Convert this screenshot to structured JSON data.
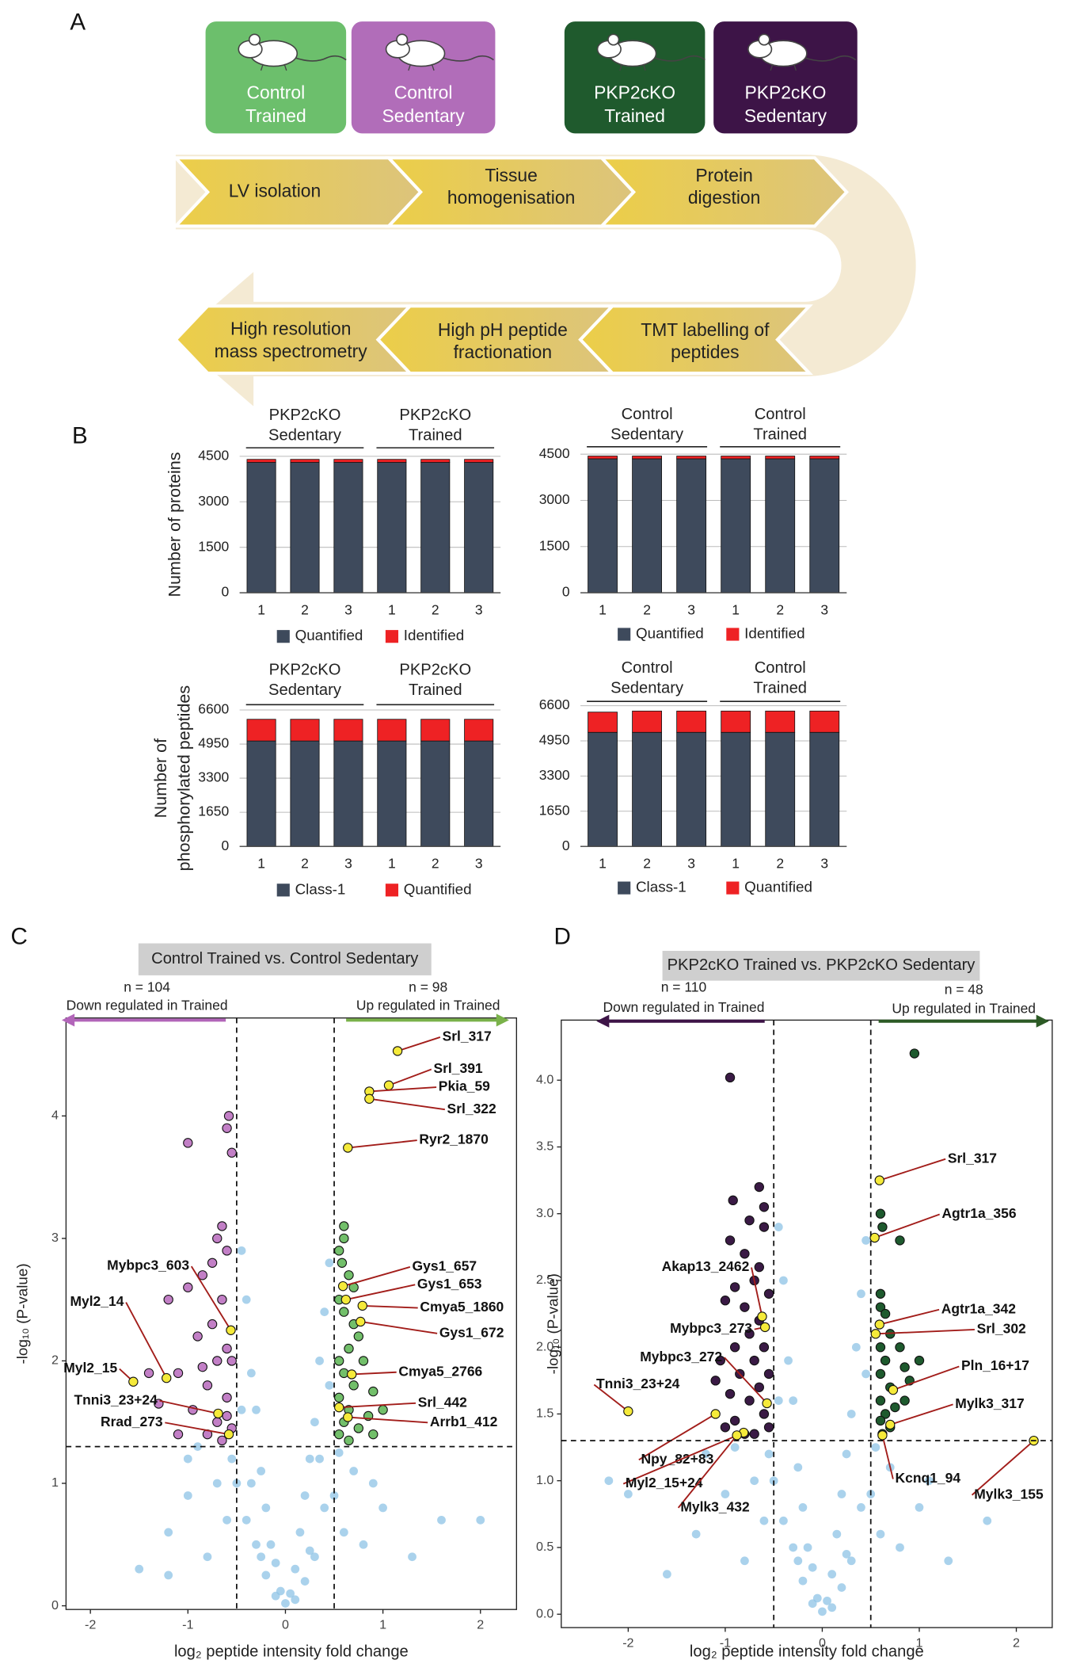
{
  "panel_labels": [
    "A",
    "B",
    "C",
    "D"
  ],
  "groups": [
    {
      "lines": [
        "Control",
        "Trained"
      ],
      "color": "#6cbf6c"
    },
    {
      "lines": [
        "Control",
        "Sedentary"
      ],
      "color": "#b16db9"
    },
    {
      "lines": [
        "PKP2cKO",
        "Trained"
      ],
      "color": "#1f5a2d"
    },
    {
      "lines": [
        "PKP2cKO",
        "Sedentary"
      ],
      "color": "#3d1447"
    }
  ],
  "workflow": [
    {
      "lines": [
        "LV isolation"
      ]
    },
    {
      "lines": [
        "Tissue",
        "homogenisation"
      ]
    },
    {
      "lines": [
        "Protein",
        "digestion"
      ]
    },
    {
      "lines": [
        "TMT labelling of",
        "peptides"
      ]
    },
    {
      "lines": [
        "High pH peptide",
        "fractionation"
      ]
    },
    {
      "lines": [
        "High resolution",
        "mass spectrometry"
      ]
    }
  ],
  "chart_data": [
    {
      "type": "bar",
      "stacked": true,
      "ylabel": [
        "Number  of proteins"
      ],
      "groups": [
        [
          "PKP2cKO",
          "Sedentary"
        ],
        [
          "PKP2cKO",
          "Trained"
        ]
      ],
      "categories": [
        "1",
        "2",
        "3",
        "1",
        "2",
        "3"
      ],
      "series": [
        {
          "name": "Quantified",
          "color": "#3e4a5c",
          "values": [
            4300,
            4300,
            4300,
            4300,
            4300,
            4300
          ]
        },
        {
          "name": "Identified",
          "color": "#ee2224",
          "values": [
            100,
            100,
            100,
            100,
            100,
            100
          ]
        }
      ],
      "ylim": [
        0,
        4500
      ],
      "yticks": [
        0,
        1500,
        3000,
        4500
      ],
      "grid": true
    },
    {
      "type": "bar",
      "stacked": true,
      "groups": [
        [
          "Control",
          "Sedentary"
        ],
        [
          "Control",
          "Trained"
        ]
      ],
      "categories": [
        "1",
        "2",
        "3",
        "1",
        "2",
        "3"
      ],
      "series": [
        {
          "name": "Quantified",
          "color": "#3e4a5c",
          "values": [
            4350,
            4350,
            4350,
            4350,
            4350,
            4350
          ]
        },
        {
          "name": "Identified",
          "color": "#ee2224",
          "values": [
            90,
            90,
            90,
            90,
            90,
            90
          ]
        }
      ],
      "ylim": [
        0,
        4500
      ],
      "yticks": [
        0,
        1500,
        3000,
        4500
      ],
      "grid": true
    },
    {
      "type": "bar",
      "stacked": true,
      "ylabel": [
        "Number of",
        "phosphorylated peptides"
      ],
      "groups": [
        [
          "PKP2cKO",
          "Sedentary"
        ],
        [
          "PKP2cKO",
          "Trained"
        ]
      ],
      "categories": [
        "1",
        "2",
        "3",
        "1",
        "2",
        "3"
      ],
      "series": [
        {
          "name": "Class-1",
          "color": "#3e4a5c",
          "values": [
            5100,
            5100,
            5100,
            5100,
            5100,
            5100
          ]
        },
        {
          "name": "Quantified",
          "color": "#ee2224",
          "values": [
            1050,
            1050,
            1050,
            1050,
            1050,
            1050
          ]
        }
      ],
      "ylim": [
        0,
        6600
      ],
      "yticks": [
        0,
        1650,
        3300,
        4950,
        6600
      ],
      "grid": true
    },
    {
      "type": "bar",
      "stacked": true,
      "groups": [
        [
          "Control",
          "Sedentary"
        ],
        [
          "Control",
          "Trained"
        ]
      ],
      "categories": [
        "1",
        "2",
        "3",
        "1",
        "2",
        "3"
      ],
      "series": [
        {
          "name": "Class-1",
          "color": "#3e4a5c",
          "values": [
            5350,
            5350,
            5350,
            5350,
            5350,
            5350
          ]
        },
        {
          "name": "Quantified",
          "color": "#ee2224",
          "values": [
            950,
            1000,
            1000,
            1000,
            1000,
            1000
          ]
        }
      ],
      "ylim": [
        0,
        6600
      ],
      "yticks": [
        0,
        1650,
        3300,
        4950,
        6600
      ],
      "grid": true
    },
    {
      "type": "scatter",
      "title": "Control Trained vs. Control Sedentary",
      "annotations": {
        "down": [
          "n = 104",
          "Down regulated in Trained"
        ],
        "up": [
          "n = 98",
          "Up regulated in Trained"
        ]
      },
      "down_color": "#b265b9",
      "up_color": "#7ab24a",
      "xlabel": "log₂ peptide intensity fold change",
      "ylabel": "-log₁₀ (P-value)",
      "xlim": [
        -2.25,
        2.37
      ],
      "ylim": [
        -0.03,
        4.8
      ],
      "xticks": [
        -2,
        -1,
        0,
        1,
        2
      ],
      "yticks": [
        0,
        1,
        2,
        3,
        4
      ],
      "thresholds": {
        "x": [
          -0.5,
          0.5
        ],
        "y": 1.3
      },
      "series": [
        {
          "color": "#8ec3e6",
          "x": [
            0,
            0.05,
            -0.05,
            0.1,
            -0.1,
            0.15,
            -0.15,
            0.2,
            -0.2,
            0.25,
            -0.25,
            0.3,
            -0.3,
            0.35,
            -0.35,
            0.4,
            -0.4,
            0.45,
            -0.45,
            0.3,
            -0.3,
            0.4,
            -0.4,
            0.5,
            -0.5,
            0.6,
            -0.6,
            0.7,
            -0.7,
            0.8,
            -0.8,
            0.2,
            -0.2,
            0.45,
            -0.45,
            0.35,
            -0.35,
            1.0,
            -1.0,
            -1.2,
            1.3,
            -1.5,
            -1.2,
            1.6,
            2.0,
            -1.0,
            0.9,
            -0.9,
            0.55,
            -0.55,
            0.1,
            -0.1,
            0.25,
            -0.25
          ],
          "values": [
            0.02,
            0.1,
            0.12,
            0.3,
            0.35,
            0.6,
            0.5,
            0.9,
            0.8,
            1.2,
            1.1,
            1.5,
            1.6,
            2.0,
            1.9,
            2.4,
            2.5,
            2.8,
            2.9,
            0.4,
            0.5,
            0.8,
            0.7,
            0.9,
            1.0,
            0.6,
            0.7,
            1.1,
            1.0,
            0.5,
            0.4,
            0.2,
            0.25,
            1.8,
            1.6,
            1.2,
            1.0,
            0.8,
            0.9,
            0.6,
            0.4,
            0.3,
            0.25,
            0.7,
            0.7,
            1.2,
            1.0,
            1.3,
            1.25,
            1.2,
            0.05,
            0.08,
            0.45,
            0.4
          ]
        },
        {
          "color": "#c27fc6",
          "x": [
            -0.6,
            -0.58,
            -0.55,
            -1.0,
            -0.65,
            -0.7,
            -0.6,
            -0.75,
            -0.85,
            -1.0,
            -1.2,
            -0.65,
            -0.9,
            -0.7,
            -1.1,
            -0.8,
            -1.4,
            -0.6,
            -0.95,
            -1.3,
            -0.7,
            -0.55,
            -0.8,
            -0.65,
            -1.1,
            -0.6,
            -0.75,
            -0.55,
            -0.85,
            -0.6
          ],
          "values": [
            3.9,
            4.0,
            3.7,
            3.78,
            3.1,
            3.0,
            2.9,
            2.8,
            2.7,
            2.6,
            2.5,
            2.5,
            2.2,
            2.0,
            1.9,
            1.8,
            1.9,
            1.7,
            1.6,
            1.65,
            1.5,
            1.45,
            1.4,
            1.35,
            1.4,
            2.1,
            2.3,
            2.0,
            1.95,
            1.55
          ]
        },
        {
          "color": "#72bf6a",
          "x": [
            0.55,
            0.6,
            0.58,
            0.65,
            0.7,
            0.55,
            0.6,
            0.75,
            0.65,
            0.8,
            0.55,
            0.6,
            0.7,
            0.9,
            0.55,
            0.65,
            0.85,
            0.6,
            0.75,
            0.55,
            0.9,
            0.65,
            1.0,
            0.7,
            0.6
          ],
          "values": [
            2.9,
            3.0,
            2.8,
            2.7,
            2.6,
            2.5,
            2.4,
            2.2,
            2.1,
            2.0,
            2.0,
            1.9,
            1.8,
            1.75,
            1.7,
            1.6,
            1.55,
            1.5,
            1.45,
            1.4,
            1.4,
            1.35,
            1.6,
            2.3,
            3.1
          ]
        },
        {
          "color": "#f5ea3a",
          "labels": [
            "Srl_317",
            "Srl_391",
            "Pkia_59",
            "Srl_322",
            "Ryr2_1870",
            "Gys1_657",
            "Gys1_653",
            "Cmya5_1860",
            "Gys1_672",
            "Cmya5_2766",
            "Srl_442",
            "Arrb1_412",
            "Mybpc3_603",
            "Myl2_14",
            "Myl2_15",
            "Tnni3_23+24",
            "Rrad_273"
          ],
          "x": [
            1.15,
            1.06,
            0.86,
            0.86,
            0.64,
            0.59,
            0.62,
            0.79,
            0.77,
            0.68,
            0.55,
            0.64,
            -0.56,
            -1.22,
            -1.56,
            -0.69,
            -0.58
          ],
          "values": [
            4.53,
            4.25,
            4.2,
            4.14,
            3.74,
            2.61,
            2.5,
            2.45,
            2.32,
            1.89,
            1.62,
            1.54,
            2.25,
            1.86,
            1.83,
            1.57,
            1.4
          ]
        }
      ]
    },
    {
      "type": "scatter",
      "title": "PKP2cKO Trained vs. PKP2cKO Sedentary",
      "annotations": {
        "down": [
          "n = 110",
          "Down regulated in Trained"
        ],
        "up": [
          "n = 48",
          "Up regulated in Trained"
        ]
      },
      "down_color": "#3d1447",
      "up_color": "#2c5a25",
      "xlabel": "log₂ peptide intensity fold change",
      "ylabel": "-log₁₀ (P-value)",
      "xlim": [
        -2.69,
        2.37
      ],
      "ylim": [
        -0.1,
        4.45
      ],
      "xticks": [
        -2,
        -1,
        0,
        1,
        2
      ],
      "yticks": [
        {
          "value": 0,
          "label": "0.0"
        },
        0.5,
        {
          "value": 1,
          "label": "1.0"
        },
        1.5,
        {
          "value": 2,
          "label": "2.0"
        },
        2.5,
        {
          "value": 3,
          "label": "3.0"
        },
        3.5,
        {
          "value": 4,
          "label": "4.0"
        }
      ],
      "thresholds": {
        "x": [
          -0.5,
          0.5
        ],
        "y": 1.3
      },
      "series": [
        {
          "color": "#8ec3e6",
          "x": [
            0,
            0.05,
            -0.05,
            0.1,
            -0.1,
            0.15,
            -0.15,
            0.2,
            -0.2,
            0.25,
            -0.25,
            0.3,
            -0.3,
            0.35,
            -0.35,
            0.4,
            -0.4,
            0.45,
            -0.45,
            0.3,
            -0.3,
            0.4,
            -0.4,
            0.5,
            -0.5,
            0.6,
            -0.6,
            0.7,
            -0.7,
            0.8,
            -0.8,
            0.2,
            -0.2,
            0.45,
            -0.45,
            1.0,
            -1.0,
            -1.3,
            1.3,
            -1.6,
            -2.2,
            1.7,
            -2.0,
            -1.2,
            1.1,
            -0.9,
            0.55,
            -0.55,
            0.1,
            -0.1,
            0.25,
            -0.25
          ],
          "values": [
            0.02,
            0.1,
            0.12,
            0.3,
            0.35,
            0.6,
            0.5,
            0.9,
            0.8,
            1.2,
            1.1,
            1.5,
            1.6,
            2.0,
            1.9,
            2.4,
            2.5,
            2.8,
            2.9,
            0.4,
            0.5,
            0.8,
            0.7,
            0.9,
            1.0,
            0.6,
            0.7,
            1.1,
            1.0,
            0.5,
            0.4,
            0.2,
            0.25,
            1.8,
            1.6,
            0.8,
            0.9,
            0.6,
            0.4,
            0.3,
            1.0,
            0.7,
            0.9,
            1.2,
            1.0,
            1.25,
            1.25,
            1.2,
            0.05,
            0.08,
            0.45,
            0.4
          ]
        },
        {
          "color": "#3a1a45",
          "x": [
            -0.95,
            -0.65,
            -0.6,
            -0.92,
            -0.75,
            -0.6,
            -0.95,
            -0.8,
            -0.65,
            -0.7,
            -0.9,
            -0.55,
            -0.8,
            -1.0,
            -0.65,
            -0.75,
            -0.6,
            -0.9,
            -1.05,
            -0.7,
            -0.55,
            -0.85,
            -1.1,
            -0.65,
            -0.95,
            -0.75,
            -0.6,
            -0.9,
            -0.55,
            -0.7,
            -1.0,
            -0.8
          ],
          "values": [
            4.02,
            3.2,
            3.05,
            3.1,
            2.95,
            2.9,
            2.8,
            2.7,
            2.6,
            2.5,
            2.45,
            2.4,
            2.3,
            2.35,
            2.2,
            2.1,
            2.0,
            2.0,
            1.9,
            1.9,
            1.8,
            1.8,
            1.75,
            1.7,
            1.65,
            1.6,
            1.5,
            1.45,
            1.4,
            1.35,
            1.4,
            1.35
          ]
        },
        {
          "color": "#1e5a2e",
          "x": [
            0.95,
            0.6,
            0.62,
            0.8,
            0.6,
            0.6,
            0.65,
            0.7,
            0.6,
            0.8,
            0.65,
            0.85,
            0.6,
            0.9,
            0.7,
            0.6,
            0.75,
            0.65,
            0.85,
            0.6,
            0.7,
            1.0,
            0.62
          ],
          "values": [
            4.2,
            3.0,
            2.9,
            2.8,
            2.4,
            2.3,
            2.25,
            2.1,
            2.0,
            2.0,
            1.9,
            1.85,
            1.8,
            1.75,
            1.7,
            1.6,
            1.55,
            1.5,
            1.6,
            1.45,
            1.4,
            1.9,
            1.35
          ]
        },
        {
          "color": "#f5ea3a",
          "labels": [
            "Srl_317",
            "Agtr1a_356",
            "Agtr1a_342",
            "Srl_302",
            "Pln_16+17",
            "Mylk3_317",
            "Kcnq1_94",
            "Mylk3_155",
            "Akap13_2462",
            "Mybpc3_273",
            "Mybpc3_272",
            "Tnni3_23+24",
            "Npy_82+83",
            "Myl2_15+24",
            "Mylk3_432"
          ],
          "x": [
            0.59,
            0.54,
            0.59,
            0.55,
            0.73,
            0.7,
            0.62,
            2.18,
            -0.62,
            -0.59,
            -0.57,
            -2.0,
            -1.1,
            -0.81,
            -0.88
          ],
          "values": [
            3.25,
            2.82,
            2.17,
            2.1,
            1.68,
            1.42,
            1.34,
            1.3,
            2.23,
            2.15,
            1.58,
            1.52,
            1.5,
            1.36,
            1.34
          ]
        }
      ]
    }
  ]
}
